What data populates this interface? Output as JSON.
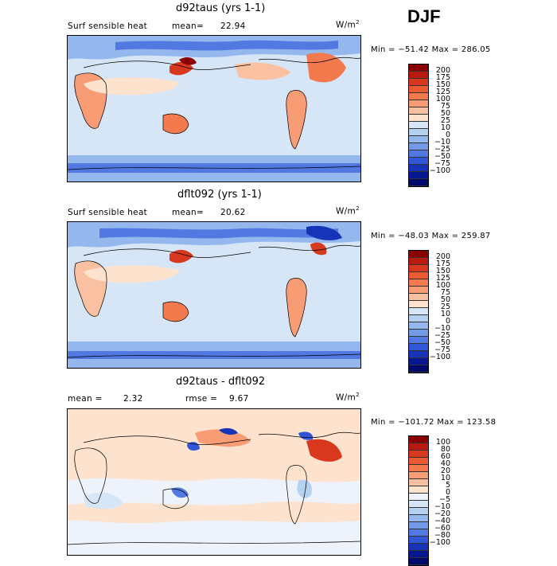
{
  "season": "DJF",
  "panels": [
    {
      "title": "d92taus (yrs 1-1)",
      "left_label": "Surf sensible heat",
      "stat_label": "mean=",
      "stat_value": "22.94",
      "stat2_label": "",
      "stat2_value": "",
      "units": "W/m",
      "units_sup": "2",
      "minmax": "Min = −51.42  Max = 286.05",
      "legend": {
        "colors": [
          "#8a0000",
          "#b81a10",
          "#d8391e",
          "#ec5a32",
          "#f37a4c",
          "#f79c74",
          "#fac0a2",
          "#fde2cd",
          "#d6e6f6",
          "#b5d1f1",
          "#94b8ee",
          "#729ae8",
          "#5279e2",
          "#3257d6",
          "#1733b8",
          "#061890",
          "#000a6b"
        ],
        "labels": [
          "200",
          "175",
          "150",
          "125",
          "100",
          "75",
          "50",
          "25",
          "10",
          "0",
          "−10",
          "−25",
          "−50",
          "−75",
          "−100"
        ]
      }
    },
    {
      "title": "dflt092 (yrs 1-1)",
      "left_label": "Surf sensible heat",
      "stat_label": "mean=",
      "stat_value": "20.62",
      "stat2_label": "",
      "stat2_value": "",
      "units": "W/m",
      "units_sup": "2",
      "minmax": "Min = −48.03  Max = 259.87",
      "legend": {
        "colors": [
          "#8a0000",
          "#b81a10",
          "#d8391e",
          "#ec5a32",
          "#f37a4c",
          "#f79c74",
          "#fac0a2",
          "#fde2cd",
          "#d6e6f6",
          "#b5d1f1",
          "#94b8ee",
          "#729ae8",
          "#5279e2",
          "#3257d6",
          "#1733b8",
          "#061890",
          "#000a6b"
        ],
        "labels": [
          "200",
          "175",
          "150",
          "125",
          "100",
          "75",
          "50",
          "25",
          "10",
          "0",
          "−10",
          "−25",
          "−50",
          "−75",
          "−100"
        ]
      }
    },
    {
      "title": "d92taus - dflt092",
      "left_label": "",
      "stat_label": "mean =",
      "stat_value": "2.32",
      "stat2_label": "rmse =",
      "stat2_value": "9.67",
      "units": "W/m",
      "units_sup": "2",
      "minmax": "Min = −101.72  Max = 123.58",
      "legend": {
        "colors": [
          "#8a0000",
          "#b81a10",
          "#d8391e",
          "#ec5a32",
          "#f37a4c",
          "#f79c74",
          "#fac0a2",
          "#fde2cd",
          "#eef3fb",
          "#d6e6f6",
          "#b5d1f1",
          "#94b8ee",
          "#729ae8",
          "#5279e2",
          "#3257d6",
          "#1733b8",
          "#061890",
          "#000a6b"
        ],
        "labels": [
          "100",
          "80",
          "60",
          "40",
          "20",
          "10",
          "5",
          "0",
          "−5",
          "−10",
          "−20",
          "−40",
          "−60",
          "−80",
          "−100"
        ]
      }
    }
  ]
}
